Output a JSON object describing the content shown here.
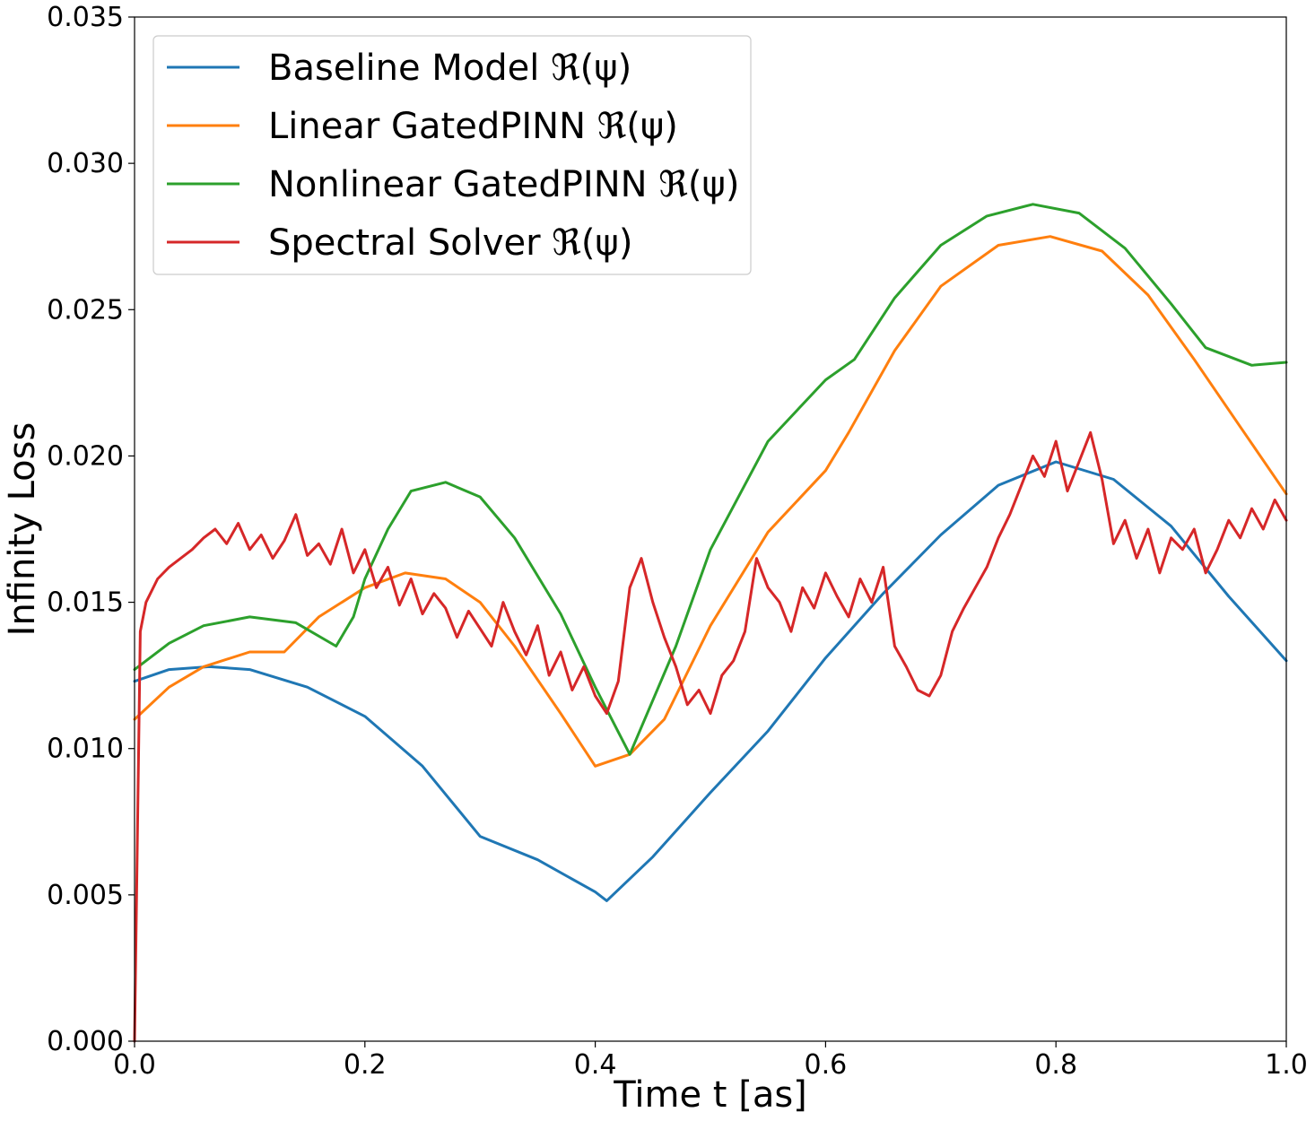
{
  "chart_data": {
    "type": "line",
    "title": "",
    "xlabel": "Time t [as]",
    "ylabel": "Infinity Loss",
    "xlim": [
      0.0,
      1.0
    ],
    "ylim": [
      0.0,
      0.035
    ],
    "xticks": [
      "0.0",
      "0.2",
      "0.4",
      "0.6",
      "0.8",
      "1.0"
    ],
    "xtick_values": [
      0.0,
      0.2,
      0.4,
      0.6,
      0.8,
      1.0
    ],
    "yticks": [
      "0.000",
      "0.005",
      "0.010",
      "0.015",
      "0.020",
      "0.025",
      "0.030",
      "0.035"
    ],
    "ytick_values": [
      0.0,
      0.005,
      0.01,
      0.015,
      0.02,
      0.025,
      0.03,
      0.035
    ],
    "legend_position": "top-left",
    "grid": false,
    "series": [
      {
        "name": "Baseline Model ℜ(ψ)",
        "color": "#1f77b4",
        "x": [
          0.0,
          0.03,
          0.065,
          0.1,
          0.15,
          0.2,
          0.25,
          0.3,
          0.35,
          0.4,
          0.41,
          0.45,
          0.5,
          0.55,
          0.6,
          0.65,
          0.7,
          0.75,
          0.8,
          0.85,
          0.9,
          0.95,
          1.0
        ],
        "values": [
          0.0123,
          0.0127,
          0.0128,
          0.0127,
          0.0121,
          0.0111,
          0.0094,
          0.007,
          0.0062,
          0.0051,
          0.0048,
          0.0063,
          0.0085,
          0.0106,
          0.0131,
          0.0153,
          0.0173,
          0.019,
          0.0198,
          0.0192,
          0.0176,
          0.0152,
          0.013
        ]
      },
      {
        "name": "Linear GatedPINN ℜ(ψ)",
        "color": "#ff7f0e",
        "x": [
          0.0,
          0.03,
          0.06,
          0.1,
          0.13,
          0.16,
          0.2,
          0.235,
          0.27,
          0.3,
          0.33,
          0.37,
          0.4,
          0.43,
          0.46,
          0.5,
          0.55,
          0.6,
          0.62,
          0.66,
          0.7,
          0.75,
          0.795,
          0.84,
          0.88,
          0.92,
          0.96,
          1.0
        ],
        "values": [
          0.011,
          0.0121,
          0.0128,
          0.0133,
          0.0133,
          0.0145,
          0.0155,
          0.016,
          0.0158,
          0.015,
          0.0135,
          0.0112,
          0.0094,
          0.0098,
          0.011,
          0.0142,
          0.0174,
          0.0195,
          0.0208,
          0.0236,
          0.0258,
          0.0272,
          0.0275,
          0.027,
          0.0255,
          0.0233,
          0.021,
          0.0187
        ]
      },
      {
        "name": "Nonlinear GatedPINN ℜ(ψ)",
        "color": "#2ca02c",
        "x": [
          0.0,
          0.03,
          0.06,
          0.1,
          0.14,
          0.175,
          0.19,
          0.2,
          0.22,
          0.24,
          0.27,
          0.3,
          0.33,
          0.37,
          0.4,
          0.43,
          0.47,
          0.5,
          0.55,
          0.6,
          0.625,
          0.66,
          0.7,
          0.74,
          0.78,
          0.82,
          0.86,
          0.9,
          0.93,
          0.97,
          1.0
        ],
        "values": [
          0.0127,
          0.0136,
          0.0142,
          0.0145,
          0.0143,
          0.0135,
          0.0145,
          0.0158,
          0.0175,
          0.0188,
          0.0191,
          0.0186,
          0.0172,
          0.0146,
          0.0121,
          0.0098,
          0.0135,
          0.0168,
          0.0205,
          0.0226,
          0.0233,
          0.0254,
          0.0272,
          0.0282,
          0.0286,
          0.0283,
          0.0271,
          0.0252,
          0.0237,
          0.0231,
          0.0232
        ]
      },
      {
        "name": "Spectral Solver  ℜ(ψ)",
        "color": "#d62728",
        "x": [
          0.0,
          0.005,
          0.01,
          0.02,
          0.03,
          0.04,
          0.05,
          0.06,
          0.07,
          0.08,
          0.09,
          0.1,
          0.11,
          0.12,
          0.13,
          0.14,
          0.15,
          0.16,
          0.17,
          0.18,
          0.19,
          0.2,
          0.21,
          0.22,
          0.23,
          0.24,
          0.25,
          0.26,
          0.27,
          0.28,
          0.29,
          0.3,
          0.31,
          0.32,
          0.33,
          0.34,
          0.35,
          0.36,
          0.37,
          0.38,
          0.39,
          0.4,
          0.41,
          0.42,
          0.43,
          0.44,
          0.45,
          0.46,
          0.47,
          0.48,
          0.49,
          0.5,
          0.51,
          0.52,
          0.53,
          0.54,
          0.55,
          0.56,
          0.57,
          0.58,
          0.59,
          0.6,
          0.61,
          0.62,
          0.63,
          0.64,
          0.65,
          0.66,
          0.67,
          0.68,
          0.69,
          0.7,
          0.71,
          0.72,
          0.73,
          0.74,
          0.75,
          0.76,
          0.77,
          0.78,
          0.79,
          0.8,
          0.81,
          0.82,
          0.83,
          0.84,
          0.85,
          0.86,
          0.87,
          0.88,
          0.89,
          0.9,
          0.91,
          0.92,
          0.93,
          0.94,
          0.95,
          0.96,
          0.97,
          0.98,
          0.99,
          1.0
        ],
        "values": [
          0.0,
          0.014,
          0.015,
          0.0158,
          0.0162,
          0.0165,
          0.0168,
          0.0172,
          0.0175,
          0.017,
          0.0177,
          0.0168,
          0.0173,
          0.0165,
          0.0171,
          0.018,
          0.0166,
          0.017,
          0.0163,
          0.0175,
          0.016,
          0.0168,
          0.0155,
          0.0162,
          0.0149,
          0.0158,
          0.0146,
          0.0153,
          0.0148,
          0.0138,
          0.0147,
          0.0141,
          0.0135,
          0.015,
          0.014,
          0.0132,
          0.0142,
          0.0125,
          0.0133,
          0.012,
          0.0128,
          0.0118,
          0.0112,
          0.0123,
          0.0155,
          0.0165,
          0.015,
          0.0138,
          0.0128,
          0.0115,
          0.012,
          0.0112,
          0.0125,
          0.013,
          0.014,
          0.0165,
          0.0155,
          0.015,
          0.014,
          0.0155,
          0.0148,
          0.016,
          0.0152,
          0.0145,
          0.0158,
          0.015,
          0.0162,
          0.0135,
          0.0128,
          0.012,
          0.0118,
          0.0125,
          0.014,
          0.0148,
          0.0155,
          0.0162,
          0.0172,
          0.018,
          0.019,
          0.02,
          0.0193,
          0.0205,
          0.0188,
          0.0198,
          0.0208,
          0.0192,
          0.017,
          0.0178,
          0.0165,
          0.0175,
          0.016,
          0.0172,
          0.0168,
          0.0175,
          0.016,
          0.0168,
          0.0178,
          0.0172,
          0.0182,
          0.0175,
          0.0185,
          0.0178
        ]
      }
    ]
  }
}
